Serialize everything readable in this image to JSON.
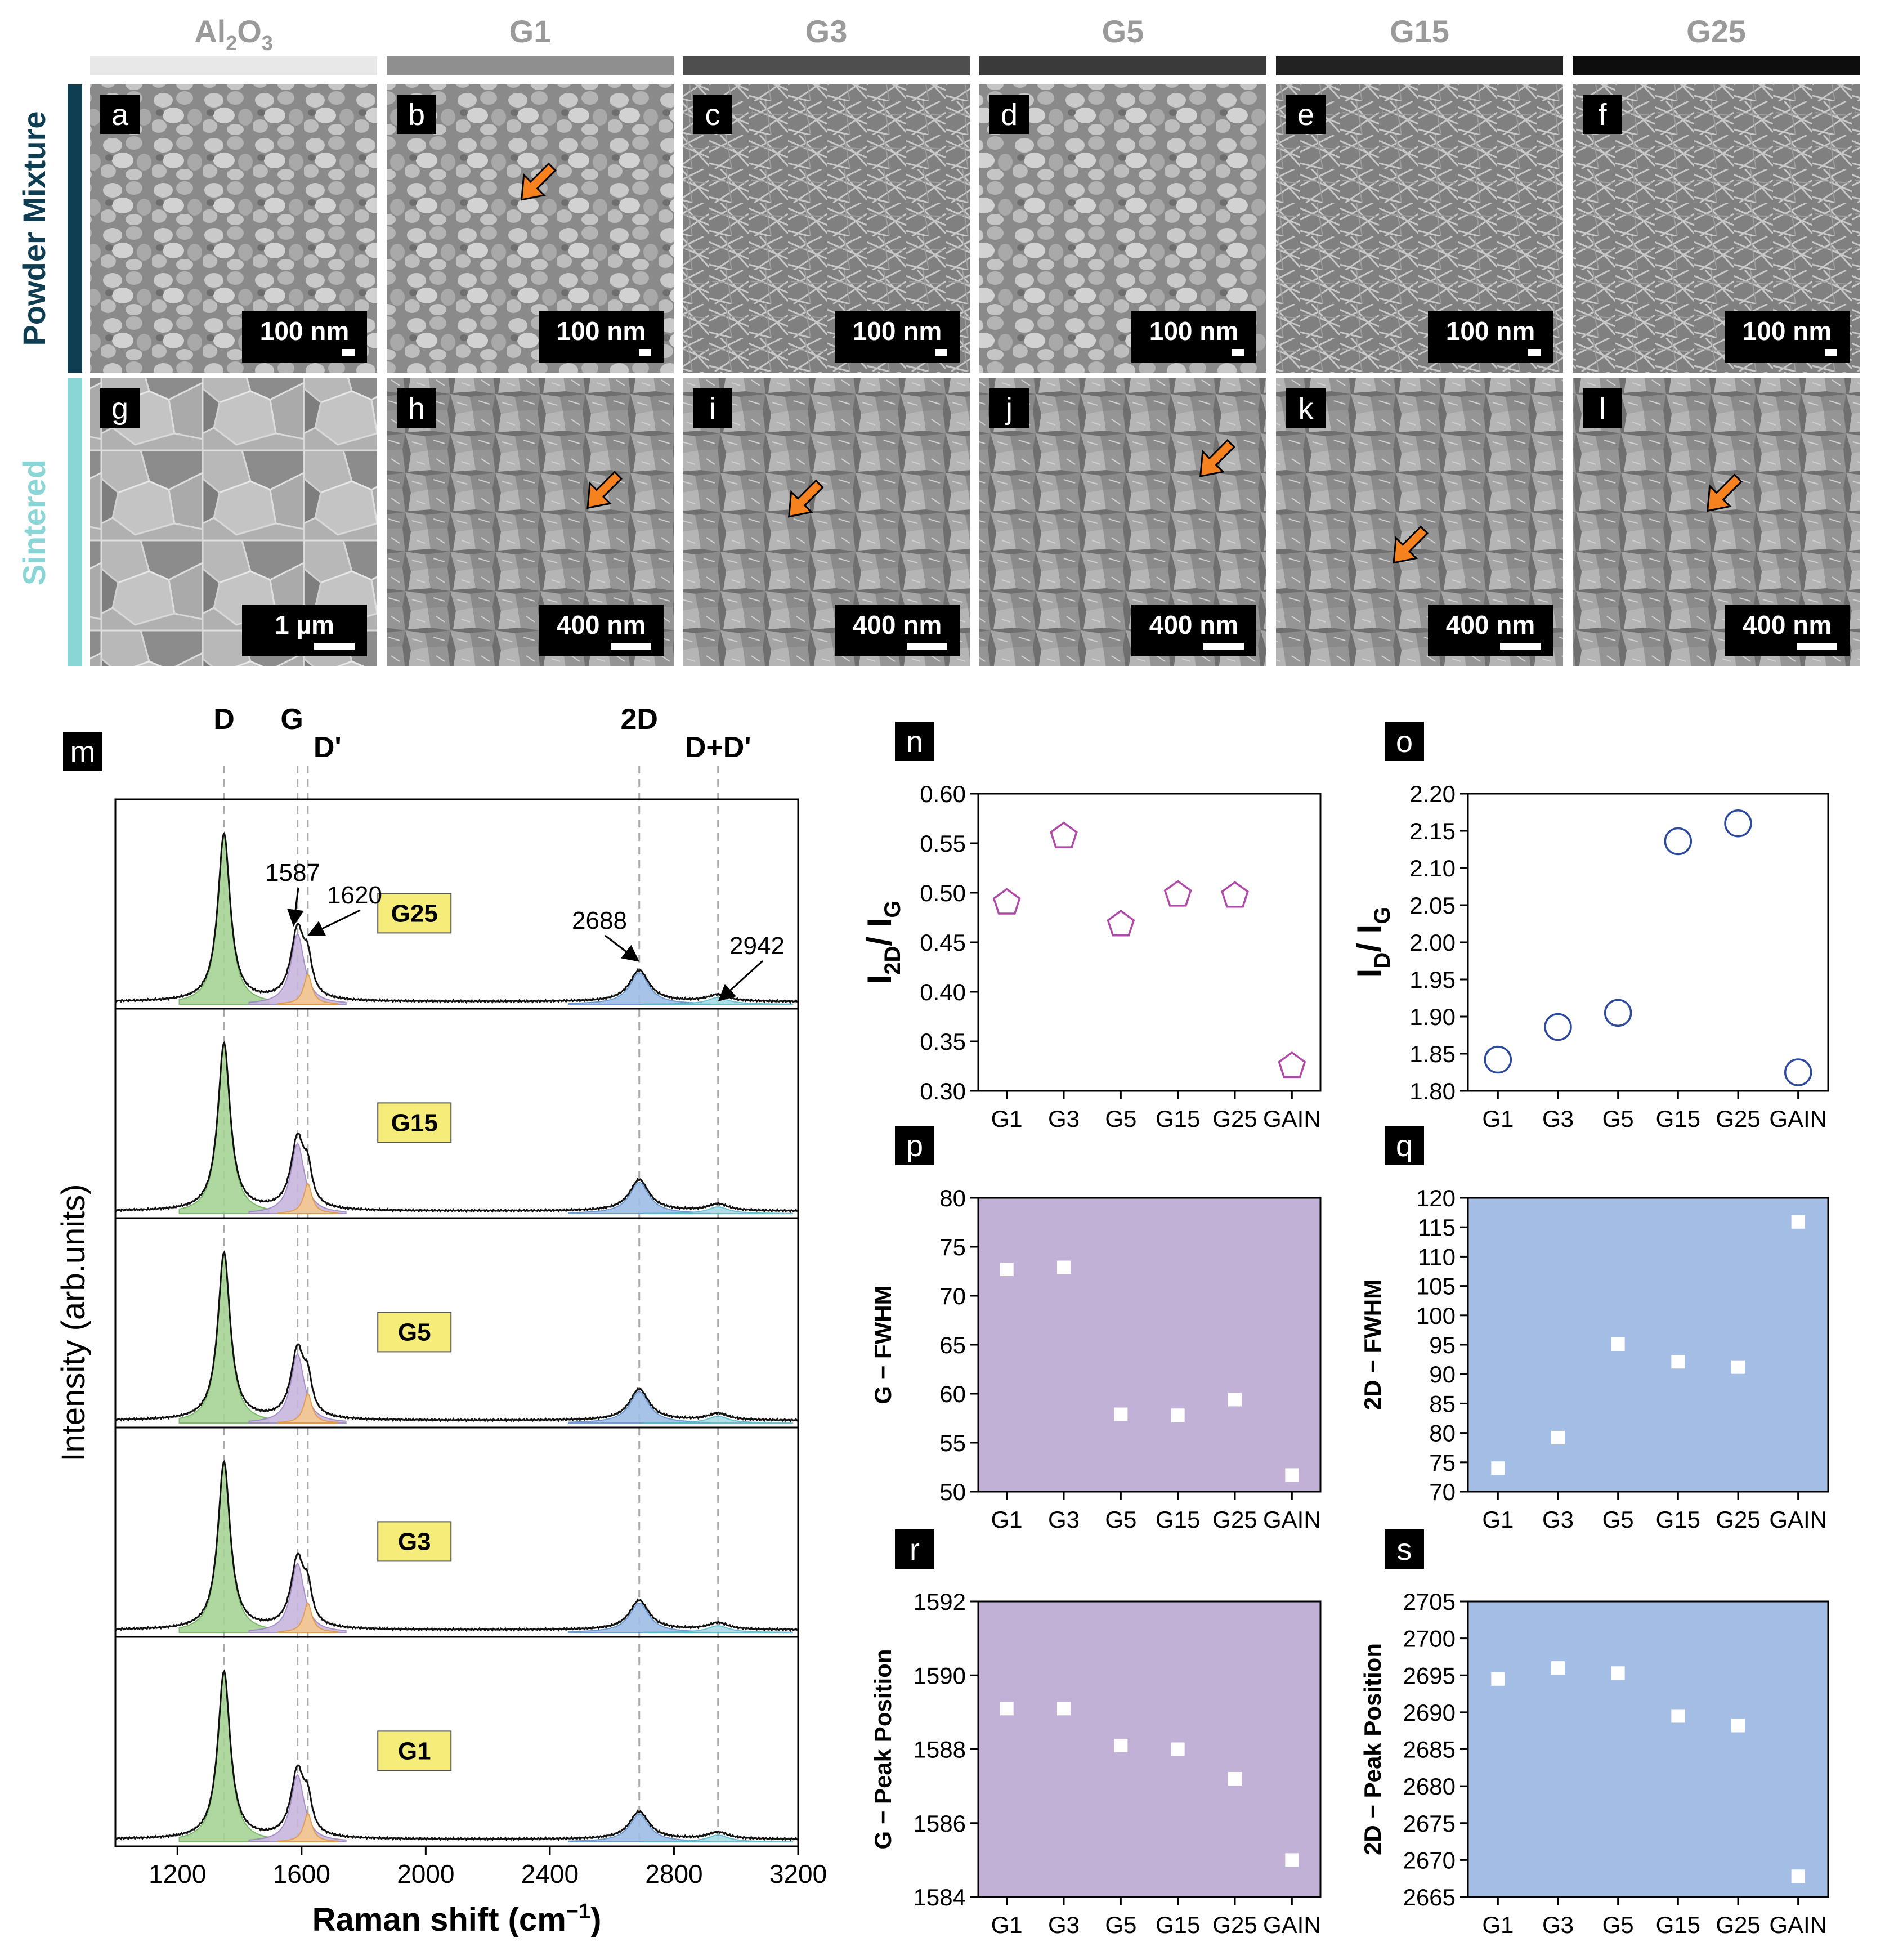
{
  "columns": [
    {
      "label": "Al",
      "sub": "2",
      "label2": "O",
      "sub2": "3",
      "bar_color": "#e8e8e8"
    },
    {
      "label": "G1",
      "bar_color": "#8f8f8f"
    },
    {
      "label": "G3",
      "bar_color": "#4e4e4e"
    },
    {
      "label": "G5",
      "bar_color": "#3a3a3a"
    },
    {
      "label": "G15",
      "bar_color": "#222222"
    },
    {
      "label": "G25",
      "bar_color": "#0d0d0d"
    }
  ],
  "rows": [
    {
      "label": "Powder Mixture",
      "color": "#0f3d52"
    },
    {
      "label": "Sintered",
      "color": "#8ad5d5"
    }
  ],
  "sem_panels": [
    {
      "letter": "a",
      "scale": "100 nm",
      "arrows": []
    },
    {
      "letter": "b",
      "scale": "100 nm",
      "arrows": [
        [
          0.47,
          0.4
        ]
      ]
    },
    {
      "letter": "c",
      "scale": "100 nm",
      "arrows": []
    },
    {
      "letter": "d",
      "scale": "100 nm",
      "arrows": []
    },
    {
      "letter": "e",
      "scale": "100 nm",
      "arrows": []
    },
    {
      "letter": "f",
      "scale": "100 nm",
      "arrows": []
    },
    {
      "letter": "g",
      "scale": "1 µm",
      "arrows": []
    },
    {
      "letter": "h",
      "scale": "400 nm",
      "arrows": [
        [
          0.7,
          0.45
        ]
      ]
    },
    {
      "letter": "i",
      "scale": "400 nm",
      "arrows": [
        [
          0.37,
          0.48
        ]
      ]
    },
    {
      "letter": "j",
      "scale": "400 nm",
      "arrows": [
        [
          0.77,
          0.34
        ]
      ]
    },
    {
      "letter": "k",
      "scale": "400 nm",
      "arrows": [
        [
          0.41,
          0.64
        ]
      ]
    },
    {
      "letter": "l",
      "scale": "400 nm",
      "arrows": [
        [
          0.47,
          0.46
        ]
      ]
    }
  ],
  "raman": {
    "letter": "m",
    "peak_labels": [
      "D",
      "G",
      "D'",
      "2D",
      "D+D'"
    ],
    "peak_positions": [
      1350,
      1587,
      1620,
      2688,
      2942
    ],
    "annotations": [
      "1587",
      "1620",
      "2688",
      "2942"
    ],
    "samples": [
      "G25",
      "G15",
      "G5",
      "G3",
      "G1"
    ],
    "xlabel": "Raman shift (cm",
    "xlabel_sup": "−1",
    "xlabel_end": ")",
    "ylabel": "Intensity (arb.units)",
    "xticks": [
      "1200",
      "1600",
      "2000",
      "2400",
      "2800",
      "3200"
    ],
    "xlim": [
      1000,
      3200
    ]
  },
  "chart_data": [
    {
      "panel": "n",
      "type": "scatter",
      "categories": [
        "G1",
        "G3",
        "G5",
        "G15",
        "G25",
        "GAIN"
      ],
      "values": [
        0.49,
        0.557,
        0.468,
        0.498,
        0.497,
        0.325
      ],
      "ylabel": "I",
      "ylabel_sub": "2D",
      "ylabel_mid": "/ I",
      "ylabel_sub2": "G",
      "ylim": [
        0.3,
        0.6
      ],
      "yticks": [
        "0.30",
        "0.35",
        "0.40",
        "0.45",
        "0.50",
        "0.55",
        "0.60"
      ],
      "marker": "pentagon",
      "color": "#b04aa8",
      "bg": "#ffffff"
    },
    {
      "panel": "o",
      "type": "scatter",
      "categories": [
        "G1",
        "G3",
        "G5",
        "G15",
        "G25",
        "GAIN"
      ],
      "values": [
        1.842,
        1.886,
        1.905,
        2.136,
        2.16,
        1.825
      ],
      "ylabel": "I",
      "ylabel_sub": "D",
      "ylabel_mid": "/ I",
      "ylabel_sub2": "G",
      "ylim": [
        1.8,
        2.2
      ],
      "yticks": [
        "1.80",
        "1.85",
        "1.90",
        "1.95",
        "2.00",
        "2.05",
        "2.10",
        "2.15",
        "2.20"
      ],
      "marker": "circle",
      "color": "#2e4a9e",
      "bg": "#ffffff"
    },
    {
      "panel": "p",
      "type": "scatter",
      "categories": [
        "G1",
        "G3",
        "G5",
        "G15",
        "G25",
        "GAIN"
      ],
      "values": [
        72.7,
        72.9,
        57.9,
        57.8,
        59.4,
        51.7
      ],
      "ylabel": "G − FWHM",
      "ylim": [
        50,
        80
      ],
      "yticks": [
        "50",
        "55",
        "60",
        "65",
        "70",
        "75",
        "80"
      ],
      "marker": "square",
      "color": "#ffffff",
      "bg": "#c2b1d7"
    },
    {
      "panel": "q",
      "type": "scatter",
      "categories": [
        "G1",
        "G3",
        "G5",
        "G15",
        "G25",
        "GAIN"
      ],
      "values": [
        74.0,
        79.2,
        95.1,
        92.1,
        91.2,
        115.9
      ],
      "ylabel": "2D − FWHM",
      "ylim": [
        70,
        120
      ],
      "yticks": [
        "70",
        "75",
        "80",
        "85",
        "90",
        "95",
        "100",
        "105",
        "110",
        "115",
        "120"
      ],
      "marker": "square",
      "color": "#ffffff",
      "bg": "#a3bde4"
    },
    {
      "panel": "r",
      "type": "scatter",
      "categories": [
        "G1",
        "G3",
        "G5",
        "G15",
        "G25",
        "GAIN"
      ],
      "values": [
        1589.1,
        1589.1,
        1588.1,
        1588.0,
        1587.2,
        1585.0
      ],
      "ylabel": "G − Peak Position",
      "ylim": [
        1584,
        1592
      ],
      "yticks": [
        "1584",
        "1586",
        "1588",
        "1590",
        "1592"
      ],
      "marker": "square",
      "color": "#ffffff",
      "bg": "#c2b1d7"
    },
    {
      "panel": "s",
      "type": "scatter",
      "categories": [
        "G1",
        "G3",
        "G5",
        "G15",
        "G25",
        "GAIN"
      ],
      "values": [
        2694.5,
        2696.0,
        2695.3,
        2689.5,
        2688.2,
        2667.8
      ],
      "ylabel": "2D − Peak Position",
      "ylim": [
        2665,
        2705
      ],
      "yticks": [
        "2665",
        "2670",
        "2675",
        "2680",
        "2685",
        "2690",
        "2695",
        "2700",
        "2705"
      ],
      "marker": "square",
      "color": "#ffffff",
      "bg": "#a3bde4"
    }
  ]
}
